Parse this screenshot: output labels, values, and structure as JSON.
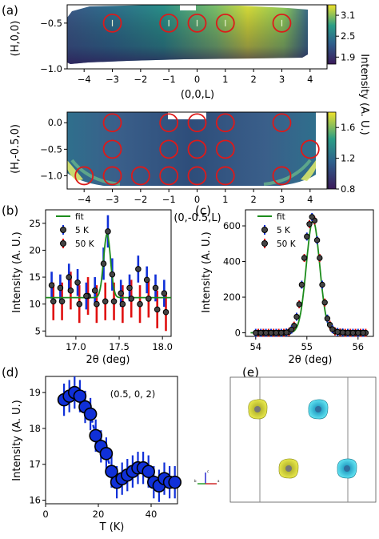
{
  "figure": {
    "panels": [
      "(a)",
      "(b)",
      "(c)",
      "(d)",
      "(e)"
    ]
  },
  "colors": {
    "map_low": "#3b1a5a",
    "map_mid": "#2a8f8a",
    "map_high": "#f0e22a",
    "circle": "#dd1a1a",
    "fit": "#1c8c1c",
    "series_5K": "#1030d8",
    "series_50K": "#e01010",
    "marker_edge": "#000000",
    "marker_fill": "#444444",
    "atom_yellow": "#d8d83a",
    "atom_cyan": "#3ad0e0"
  },
  "chart_data": [
    {
      "type": "heatmap",
      "panel": "(a)",
      "xlabel": "(0,0,L)",
      "ylabel": "(H,0,0)",
      "xlim": [
        -4.6,
        4.6
      ],
      "ylim": [
        -1.0,
        -0.3
      ],
      "xticks": [
        "−4",
        "−3",
        "−2",
        "−1",
        "0",
        "1",
        "2",
        "3",
        "4"
      ],
      "yticks": [
        "−0.5",
        "−1.0"
      ],
      "colorbar": {
        "label": "Intensity",
        "ticks": [
          "3.1",
          "2.5",
          "1.9"
        ],
        "range": [
          1.7,
          3.4
        ]
      },
      "circles_L": [
        -3,
        -1,
        0,
        1,
        3
      ],
      "circles_H": -0.5
    },
    {
      "type": "heatmap",
      "panel": "(a) lower",
      "xlabel": "(0,-0.5,L)",
      "ylabel": "(H,-0.5,0)",
      "xlim": [
        -4.6,
        4.6
      ],
      "ylim": [
        -1.25,
        0.2
      ],
      "xticks": [
        "−4",
        "−3",
        "−2",
        "−1",
        "0",
        "1",
        "2",
        "3",
        "4"
      ],
      "yticks": [
        "0.0",
        "−0.5",
        "−1.0"
      ],
      "colorbar": {
        "label": "Intensity (A. U.)",
        "ticks": [
          "1.6",
          "1.2",
          "0.8"
        ],
        "range": [
          0.8,
          1.8
        ]
      },
      "circles": [
        {
          "L": -3,
          "H": 0.0
        },
        {
          "L": -1,
          "H": 0.0
        },
        {
          "L": 0,
          "H": 0.0
        },
        {
          "L": 1,
          "H": 0.0
        },
        {
          "L": 3,
          "H": 0.0
        },
        {
          "L": -3,
          "H": -0.5
        },
        {
          "L": -1,
          "H": -0.5
        },
        {
          "L": 0,
          "H": -0.5
        },
        {
          "L": 1,
          "H": -0.5
        },
        {
          "L": 4,
          "H": -0.5
        },
        {
          "L": -4,
          "H": -1.0
        },
        {
          "L": -3,
          "H": -1.0
        },
        {
          "L": -2,
          "H": -1.0
        },
        {
          "L": -1,
          "H": -1.0
        },
        {
          "L": 0,
          "H": -1.0
        },
        {
          "L": 1,
          "H": -1.0
        },
        {
          "L": 3,
          "H": -1.0
        }
      ]
    },
    {
      "type": "scatter",
      "panel": "(b)",
      "xlabel": "2θ (deg)",
      "ylabel": "Intensity (A. U.)",
      "xlim": [
        16.65,
        18.1
      ],
      "ylim": [
        4,
        27.5
      ],
      "xticks": [
        17.0,
        17.5,
        18.0
      ],
      "xtick_labels": [
        "17.0",
        "17.5",
        "18.0"
      ],
      "yticks": [
        5,
        10,
        15,
        20,
        25
      ],
      "legend": [
        "fit",
        "5 K",
        "50 K"
      ],
      "legend_position": "top-left",
      "series": [
        {
          "name": "5 K",
          "x": [
            16.72,
            16.82,
            16.92,
            17.02,
            17.12,
            17.22,
            17.32,
            17.37,
            17.42,
            17.52,
            17.62,
            17.72,
            17.82,
            17.92,
            18.02
          ],
          "y": [
            13.5,
            13.0,
            15.0,
            14.0,
            11.5,
            12.5,
            17.5,
            23.5,
            15.5,
            12.0,
            13.0,
            16.5,
            14.5,
            13.0,
            12.0
          ],
          "err": [
            2.5,
            2.5,
            2.5,
            2.5,
            2.5,
            2.5,
            3.0,
            3.0,
            3.0,
            2.5,
            2.5,
            2.5,
            2.5,
            2.5,
            2.5
          ]
        },
        {
          "name": "50 K",
          "x": [
            16.74,
            16.84,
            16.94,
            17.04,
            17.14,
            17.24,
            17.34,
            17.44,
            17.54,
            17.64,
            17.74,
            17.84,
            17.94,
            18.04
          ],
          "y": [
            10.5,
            10.5,
            12.5,
            10.0,
            11.5,
            10.0,
            10.5,
            10.5,
            10.0,
            11.0,
            10.0,
            11.0,
            9.0,
            8.5
          ],
          "err": [
            3.5,
            3.5,
            3.5,
            3.5,
            3.5,
            3.5,
            3.5,
            3.5,
            3.5,
            3.5,
            3.5,
            3.5,
            3.5,
            3.5
          ]
        }
      ],
      "fit": {
        "baseline": 11.2,
        "amplitude": 11.8,
        "center": 17.36,
        "sigma": 0.04
      }
    },
    {
      "type": "scatter",
      "panel": "(c)",
      "xlabel": "2θ (deg)",
      "ylabel": "Intensity (A. U.)",
      "xlim": [
        53.8,
        56.3
      ],
      "ylim": [
        -20,
        690
      ],
      "xticks": [
        54,
        55,
        56
      ],
      "yticks": [
        0,
        200,
        400,
        600
      ],
      "legend": [
        "fit",
        "5 K",
        "50 K"
      ],
      "legend_position": "top-left",
      "series": [
        {
          "name": "5 K",
          "x": [
            54.0,
            54.1,
            54.2,
            54.3,
            54.4,
            54.5,
            54.6,
            54.7,
            54.8,
            54.9,
            55.0,
            55.1,
            55.2,
            55.3,
            55.4,
            55.5,
            55.6,
            55.7,
            55.8,
            55.9,
            56.0,
            56.1
          ],
          "y": [
            0,
            0,
            0,
            0,
            0,
            0,
            2,
            18,
            90,
            270,
            540,
            650,
            520,
            270,
            80,
            20,
            5,
            2,
            0,
            0,
            0,
            0
          ]
        },
        {
          "name": "50 K",
          "x": [
            54.05,
            54.15,
            54.25,
            54.35,
            54.45,
            54.55,
            54.65,
            54.75,
            54.85,
            54.95,
            55.05,
            55.15,
            55.25,
            55.35,
            55.45,
            55.55,
            55.65,
            55.75,
            55.85,
            55.95,
            56.05,
            56.15
          ],
          "y": [
            0,
            0,
            0,
            0,
            0,
            0,
            5,
            40,
            160,
            420,
            610,
            630,
            420,
            170,
            45,
            8,
            2,
            0,
            0,
            0,
            0,
            0
          ]
        }
      ],
      "fit": {
        "baseline": 0,
        "amplitude": 630,
        "center": 55.12,
        "sigma": 0.13
      }
    },
    {
      "type": "scatter",
      "panel": "(d)",
      "xlabel": "T (K)",
      "ylabel": "Intensity (A. U.)",
      "xlim": [
        0,
        50
      ],
      "ylim": [
        15.9,
        19.45
      ],
      "xticks": [
        0,
        20,
        40
      ],
      "yticks": [
        16,
        17,
        18,
        19
      ],
      "annotation": "(0.5, 0, 2)",
      "series": [
        {
          "name": "(0.5, 0, 2)",
          "x": [
            7,
            9,
            11,
            13,
            15,
            17,
            19,
            21,
            23,
            25,
            27,
            29,
            31,
            33,
            35,
            37,
            39,
            41,
            43,
            45,
            47,
            49
          ],
          "y": [
            18.8,
            18.9,
            19.0,
            18.9,
            18.6,
            18.4,
            17.8,
            17.5,
            17.3,
            16.8,
            16.5,
            16.6,
            16.7,
            16.8,
            16.9,
            16.9,
            16.8,
            16.5,
            16.4,
            16.6,
            16.5,
            16.5
          ],
          "err": [
            0.45,
            0.45,
            0.45,
            0.45,
            0.45,
            0.45,
            0.45,
            0.45,
            0.45,
            0.45,
            0.45,
            0.45,
            0.45,
            0.45,
            0.45,
            0.45,
            0.45,
            0.45,
            0.45,
            0.45,
            0.45,
            0.45
          ]
        }
      ]
    }
  ],
  "structure_panel": {
    "axes_letters": [
      "c",
      "b",
      "a"
    ]
  }
}
